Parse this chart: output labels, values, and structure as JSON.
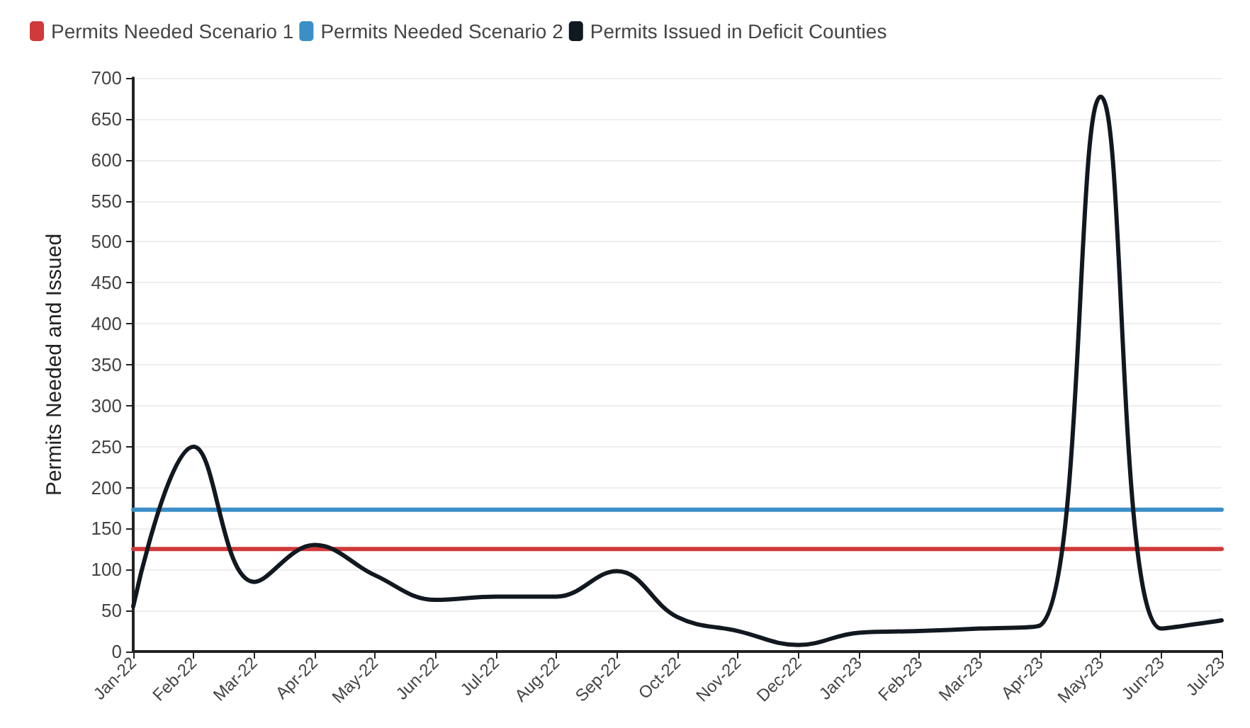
{
  "chart_data": {
    "type": "line",
    "ylabel": "Permits Needed and Issued",
    "categories": [
      "Jan-22",
      "Feb-22",
      "Mar-22",
      "Apr-22",
      "May-22",
      "Jun-22",
      "Jul-22",
      "Aug-22",
      "Sep-22",
      "Oct-22",
      "Nov-22",
      "Dec-22",
      "Jan-23",
      "Feb-23",
      "Mar-23",
      "Apr-23",
      "May-23",
      "Jun-23",
      "Jul-23"
    ],
    "series": [
      {
        "name": "Permits Needed Scenario 1",
        "color": "#d13a3a",
        "values": [
          125,
          125,
          125,
          125,
          125,
          125,
          125,
          125,
          125,
          125,
          125,
          125,
          125,
          125,
          125,
          125,
          125,
          125,
          125
        ]
      },
      {
        "name": "Permits Needed Scenario 2",
        "color": "#3a8fc7",
        "values": [
          173,
          173,
          173,
          173,
          173,
          173,
          173,
          173,
          173,
          173,
          173,
          173,
          173,
          173,
          173,
          173,
          173,
          173,
          173
        ]
      },
      {
        "name": "Permits Issued in Deficit Counties",
        "color": "#111820",
        "values": [
          55,
          250,
          85,
          130,
          93,
          63,
          67,
          67,
          98,
          42,
          25,
          8,
          23,
          25,
          28,
          32,
          677,
          28,
          38
        ]
      }
    ],
    "ylim": [
      0,
      700
    ],
    "yticks": [
      0,
      50,
      100,
      150,
      200,
      250,
      300,
      350,
      400,
      450,
      500,
      550,
      600,
      650,
      700
    ],
    "grid": "y",
    "legend": "top left",
    "marker": "none",
    "line_style": "solid"
  }
}
